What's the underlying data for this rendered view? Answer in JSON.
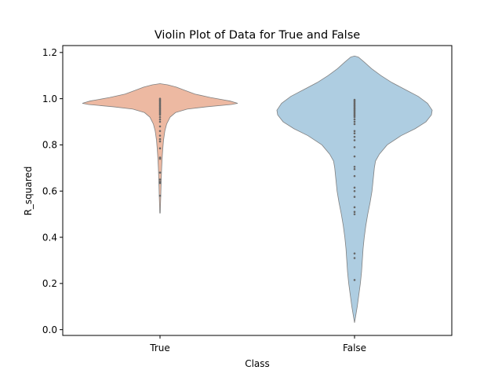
{
  "chart_data": {
    "type": "violin",
    "title": "Violin Plot of Data for True and False",
    "xlabel": "Class",
    "ylabel": "R_squared",
    "ylim": [
      -0.025,
      1.23
    ],
    "yticks": [
      0.0,
      0.2,
      0.4,
      0.6,
      0.8,
      1.0,
      1.2
    ],
    "ytick_labels": [
      "0.0",
      "0.2",
      "0.4",
      "0.6",
      "0.8",
      "1.0",
      "1.2"
    ],
    "categories": [
      "True",
      "False"
    ],
    "grid": false,
    "legend": "none",
    "series": [
      {
        "category": "True",
        "color": "#edb9a2",
        "y_min": 0.505,
        "y_max": 1.065,
        "profile": [
          [
            0.505,
            0.003
          ],
          [
            0.54,
            0.006
          ],
          [
            0.58,
            0.01
          ],
          [
            0.62,
            0.013
          ],
          [
            0.66,
            0.017
          ],
          [
            0.7,
            0.021
          ],
          [
            0.74,
            0.027
          ],
          [
            0.78,
            0.035
          ],
          [
            0.82,
            0.045
          ],
          [
            0.86,
            0.062
          ],
          [
            0.89,
            0.085
          ],
          [
            0.92,
            0.13
          ],
          [
            0.94,
            0.2
          ],
          [
            0.955,
            0.35
          ],
          [
            0.965,
            0.6
          ],
          [
            0.975,
            0.92
          ],
          [
            0.98,
            1.0
          ],
          [
            0.99,
            0.9
          ],
          [
            1.005,
            0.65
          ],
          [
            1.02,
            0.45
          ],
          [
            1.035,
            0.33
          ],
          [
            1.05,
            0.21
          ],
          [
            1.06,
            0.1
          ],
          [
            1.065,
            0.0
          ]
        ],
        "points": [
          1.0,
          0.995,
          0.99,
          0.985,
          0.98,
          0.975,
          0.97,
          0.965,
          0.96,
          0.955,
          0.95,
          0.945,
          0.94,
          0.935,
          0.93,
          0.92,
          0.91,
          0.9,
          0.88,
          0.86,
          0.84,
          0.825,
          0.815,
          0.785,
          0.745,
          0.74,
          0.68,
          0.65,
          0.64,
          0.635,
          0.58
        ]
      },
      {
        "category": "False",
        "color": "#aecde1",
        "y_min": 0.03,
        "y_max": 1.185,
        "profile": [
          [
            0.03,
            0.0
          ],
          [
            0.06,
            0.015
          ],
          [
            0.1,
            0.035
          ],
          [
            0.15,
            0.055
          ],
          [
            0.2,
            0.075
          ],
          [
            0.25,
            0.09
          ],
          [
            0.3,
            0.1
          ],
          [
            0.35,
            0.11
          ],
          [
            0.4,
            0.125
          ],
          [
            0.45,
            0.145
          ],
          [
            0.5,
            0.17
          ],
          [
            0.55,
            0.2
          ],
          [
            0.6,
            0.225
          ],
          [
            0.65,
            0.24
          ],
          [
            0.7,
            0.255
          ],
          [
            0.73,
            0.27
          ],
          [
            0.76,
            0.32
          ],
          [
            0.8,
            0.42
          ],
          [
            0.84,
            0.6
          ],
          [
            0.87,
            0.78
          ],
          [
            0.9,
            0.92
          ],
          [
            0.93,
            0.99
          ],
          [
            0.95,
            1.0
          ],
          [
            0.98,
            0.94
          ],
          [
            1.01,
            0.82
          ],
          [
            1.04,
            0.65
          ],
          [
            1.07,
            0.48
          ],
          [
            1.1,
            0.34
          ],
          [
            1.13,
            0.22
          ],
          [
            1.16,
            0.12
          ],
          [
            1.18,
            0.05
          ],
          [
            1.185,
            0.0
          ]
        ],
        "points": [
          0.995,
          0.99,
          0.985,
          0.98,
          0.975,
          0.97,
          0.965,
          0.96,
          0.955,
          0.95,
          0.945,
          0.94,
          0.935,
          0.93,
          0.925,
          0.92,
          0.91,
          0.9,
          0.89,
          0.86,
          0.85,
          0.835,
          0.82,
          0.79,
          0.75,
          0.705,
          0.695,
          0.665,
          0.615,
          0.6,
          0.575,
          0.53,
          0.51,
          0.5,
          0.33,
          0.31,
          0.215
        ]
      }
    ],
    "colors": {
      "outline": "#808080",
      "points": "#666666",
      "axes": "#000000"
    }
  }
}
